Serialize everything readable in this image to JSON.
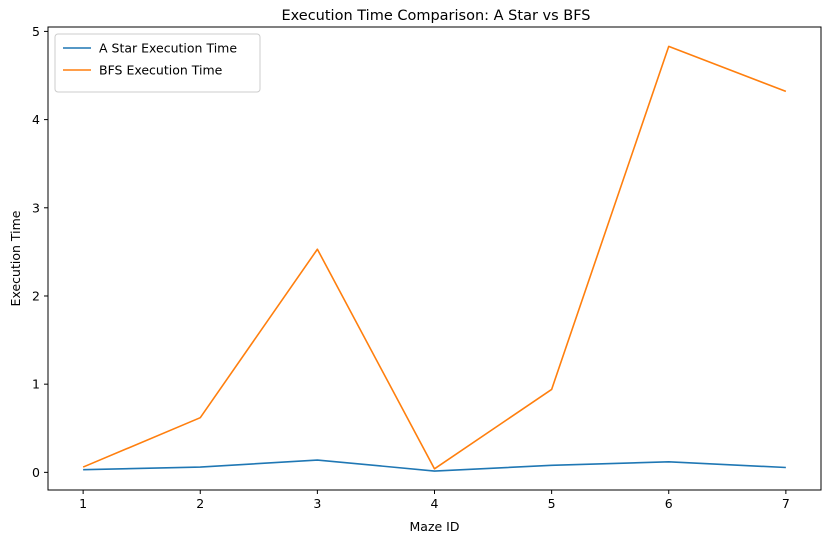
{
  "chart_data": {
    "type": "line",
    "title": "Execution Time Comparison: A Star vs BFS",
    "xlabel": "Maze ID",
    "ylabel": "Execution Time",
    "x": [
      1,
      2,
      3,
      4,
      5,
      6,
      7
    ],
    "xlim": [
      0.7,
      7.3
    ],
    "ylim": [
      -0.2,
      5.05
    ],
    "xticks": [
      1,
      2,
      3,
      4,
      5,
      6,
      7
    ],
    "yticks": [
      0,
      1,
      2,
      3,
      4,
      5
    ],
    "grid": false,
    "legend_position": "top-left",
    "series": [
      {
        "name": "A Star Execution Time",
        "color": "#1f77b4",
        "values": [
          0.03,
          0.06,
          0.14,
          0.015,
          0.08,
          0.12,
          0.055
        ]
      },
      {
        "name": "BFS Execution Time",
        "color": "#ff7f0e",
        "values": [
          0.06,
          0.62,
          2.53,
          0.04,
          0.94,
          4.83,
          4.32
        ]
      }
    ]
  }
}
